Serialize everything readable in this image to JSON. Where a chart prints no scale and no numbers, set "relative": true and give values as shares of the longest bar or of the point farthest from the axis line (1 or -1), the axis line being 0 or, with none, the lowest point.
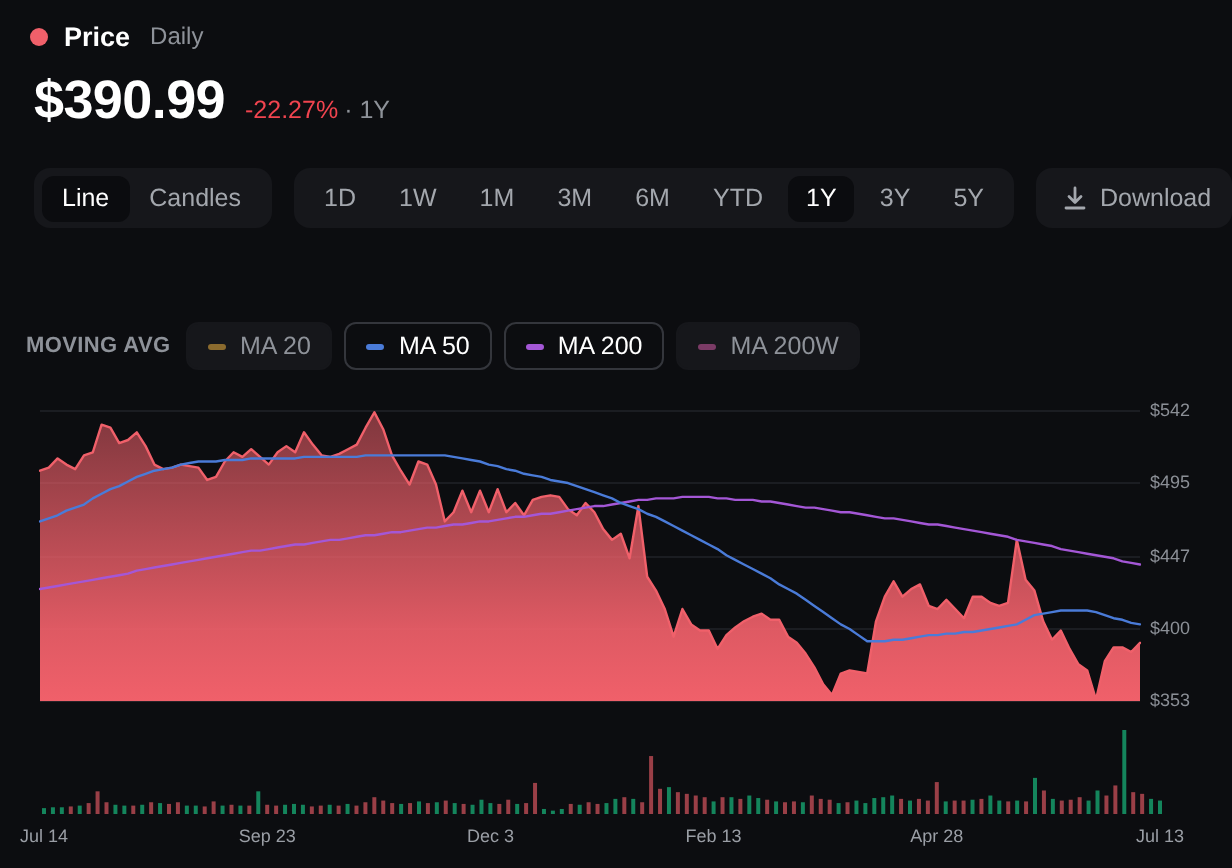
{
  "chart_data": [
    {
      "type": "area",
      "subtitle": "Daily",
      "annotations": [
        "$390.99",
        "-22.27%",
        "· 1Y"
      ],
      "legend": "top left",
      "legend_title": "MOVING AVG",
      "marker": "none",
      "grid": "y",
      "categories": [
        null,
        null,
        null,
        null,
        null,
        null,
        null,
        null,
        null,
        null,
        null,
        null,
        null,
        null,
        null,
        null,
        null,
        null,
        null,
        null,
        null,
        null,
        null,
        null,
        null,
        null,
        null,
        null,
        null,
        null,
        null,
        null,
        null,
        null,
        null,
        null,
        null,
        null,
        null,
        null,
        null,
        null,
        null,
        null,
        null,
        null,
        null,
        null,
        null,
        null,
        null,
        null,
        null,
        null,
        null,
        null,
        null,
        null,
        null,
        null,
        null,
        null,
        null,
        null,
        null,
        null,
        null,
        null,
        null,
        null,
        null,
        null,
        null,
        null,
        null,
        null,
        null,
        null,
        null,
        null,
        null,
        null,
        null,
        null,
        null,
        null,
        null,
        null,
        null,
        null,
        null,
        null,
        null,
        null,
        null,
        null,
        null,
        null,
        null,
        null,
        null,
        null,
        null,
        null,
        null,
        null,
        null,
        null,
        null,
        null,
        null,
        null,
        null,
        null,
        null,
        null,
        null,
        null,
        null,
        null,
        null,
        null,
        null,
        null,
        null,
        null
      ],
      "ylim": [
        353,
        542
      ],
      "yticks": [
        {
          "value": 353,
          "label": "$353"
        },
        {
          "value": 400,
          "label": "$400"
        },
        {
          "value": 447,
          "label": "$447"
        },
        {
          "value": 495,
          "label": "$495"
        },
        {
          "value": 542,
          "label": "$542"
        }
      ],
      "series": [
        {
          "name": "Price",
          "color": "#f0606a",
          "values": [
            503,
            505,
            511,
            507,
            504,
            513,
            515,
            533,
            531,
            521,
            523,
            528,
            519,
            507,
            504,
            505,
            507,
            506,
            505,
            497,
            499,
            509,
            515,
            512,
            517,
            512,
            507,
            515,
            519,
            515,
            528,
            520,
            513,
            512,
            514,
            517,
            520,
            531,
            541,
            530,
            513,
            503,
            494,
            509,
            507,
            494,
            470,
            476,
            490,
            476,
            490,
            476,
            491,
            476,
            482,
            474,
            484,
            486,
            487,
            486,
            478,
            474,
            482,
            476,
            465,
            458,
            462,
            446,
            480,
            434,
            425,
            413,
            395,
            413,
            403,
            399,
            399,
            387,
            396,
            401,
            405,
            408,
            410,
            406,
            406,
            395,
            391,
            384,
            375,
            364,
            357,
            371,
            373,
            372,
            371,
            405,
            421,
            431,
            421,
            426,
            429,
            415,
            413,
            419,
            413,
            407,
            421,
            421,
            417,
            415,
            417,
            458,
            432,
            425,
            405,
            393,
            399,
            387,
            377,
            373,
            354,
            379,
            388,
            388,
            385,
            391
          ]
        },
        {
          "name": "MA 20",
          "type": "line",
          "color": "#8b6b2e",
          "values": [
            null,
            null,
            null,
            null,
            null,
            null,
            null,
            null,
            null,
            null,
            null,
            null,
            null,
            null,
            null,
            null,
            null,
            null,
            null,
            null,
            null,
            null,
            null,
            null,
            null,
            null,
            null,
            null,
            null,
            null,
            null,
            null,
            null,
            null,
            null,
            null,
            null,
            null,
            null,
            null,
            null,
            null,
            null,
            null,
            null,
            null,
            null,
            null,
            null,
            null,
            null,
            null,
            null,
            null,
            null,
            null,
            null,
            null,
            null,
            null,
            null,
            null,
            null,
            null,
            null,
            null,
            null,
            null,
            null,
            null,
            null,
            null,
            null,
            null,
            null,
            null,
            null,
            null,
            null,
            null,
            null,
            null,
            null,
            null,
            null,
            null,
            null,
            null,
            null,
            null,
            null,
            null,
            null,
            null,
            null,
            null,
            null,
            null,
            null,
            null,
            null,
            null,
            null,
            null,
            null,
            null,
            null,
            null,
            null,
            null,
            null,
            null,
            null,
            null,
            null,
            null,
            null,
            null,
            null,
            null,
            null,
            null,
            null,
            null,
            null,
            null
          ]
        },
        {
          "name": "MA 50",
          "type": "line",
          "color": "#4a7bd8",
          "values": [
            470,
            472,
            474,
            477,
            479,
            481,
            485,
            488,
            491,
            493,
            496,
            499,
            501,
            503,
            504,
            505,
            507,
            508,
            509,
            509,
            509,
            510,
            510,
            510,
            511,
            511,
            511,
            511,
            511,
            511,
            512,
            512,
            512,
            512,
            512,
            512,
            512,
            513,
            513,
            513,
            513,
            513,
            513,
            513,
            513,
            513,
            513,
            512,
            511,
            510,
            509,
            507,
            506,
            504,
            503,
            501,
            500,
            499,
            497,
            496,
            495,
            493,
            491,
            489,
            487,
            485,
            482,
            480,
            478,
            475,
            473,
            470,
            467,
            464,
            461,
            458,
            455,
            452,
            448,
            445,
            442,
            439,
            436,
            433,
            429,
            426,
            423,
            419,
            415,
            411,
            407,
            403,
            400,
            396,
            392,
            392,
            392,
            393,
            393,
            394,
            395,
            396,
            396,
            397,
            397,
            398,
            398,
            399,
            400,
            401,
            402,
            403,
            406,
            409,
            410,
            411,
            412,
            412,
            412,
            412,
            411,
            409,
            407,
            406,
            404,
            403
          ]
        },
        {
          "name": "MA 200",
          "type": "line",
          "color": "#a457d6",
          "values": [
            426,
            427,
            428,
            429,
            430,
            431,
            432,
            433,
            434,
            435,
            436,
            438,
            439,
            440,
            441,
            442,
            443,
            444,
            445,
            446,
            447,
            448,
            449,
            450,
            451,
            451,
            452,
            453,
            454,
            455,
            455,
            456,
            457,
            458,
            458,
            459,
            460,
            461,
            461,
            462,
            463,
            463,
            464,
            465,
            466,
            466,
            467,
            468,
            468,
            469,
            470,
            470,
            471,
            472,
            473,
            473,
            474,
            475,
            475,
            476,
            477,
            478,
            479,
            480,
            480,
            481,
            482,
            483,
            484,
            484,
            485,
            485,
            485,
            486,
            486,
            486,
            486,
            485,
            485,
            484,
            484,
            484,
            483,
            483,
            482,
            481,
            480,
            479,
            479,
            478,
            477,
            476,
            476,
            475,
            474,
            473,
            472,
            472,
            471,
            470,
            469,
            468,
            468,
            467,
            466,
            465,
            464,
            463,
            462,
            461,
            460,
            458,
            457,
            456,
            455,
            454,
            452,
            451,
            450,
            449,
            448,
            447,
            446,
            444,
            443,
            442
          ]
        },
        {
          "name": "MA 200W",
          "type": "line",
          "color": "#7b3b66",
          "values": [
            null,
            null,
            null,
            null,
            null,
            null,
            null,
            null,
            null,
            null,
            null,
            null,
            null,
            null,
            null,
            null,
            null,
            null,
            null,
            null,
            null,
            null,
            null,
            null,
            null,
            null,
            null,
            null,
            null,
            null,
            null,
            null,
            null,
            null,
            null,
            null,
            null,
            null,
            null,
            null,
            null,
            null,
            null,
            null,
            null,
            null,
            null,
            null,
            null,
            null,
            null,
            null,
            null,
            null,
            null,
            null,
            null,
            null,
            null,
            null,
            null,
            null,
            null,
            null,
            null,
            null,
            null,
            null,
            null,
            null,
            null,
            null,
            null,
            null,
            null,
            null,
            null,
            null,
            null,
            null,
            null,
            null,
            null,
            null,
            null,
            null,
            null,
            null,
            null,
            null,
            null,
            null,
            null,
            null,
            null,
            null,
            null,
            null,
            null,
            null,
            null,
            null,
            null,
            null,
            null,
            null,
            null,
            null,
            null,
            null,
            null,
            null,
            null,
            null,
            null,
            null,
            null,
            null,
            null,
            null,
            null,
            null,
            null,
            null,
            null,
            null
          ]
        }
      ]
    },
    {
      "type": "other",
      "annotations": [
        "Line",
        "Candles",
        "1D",
        "1W",
        "1M",
        "3M",
        "6M",
        "YTD",
        "1Y",
        "3Y",
        "5Y",
        "Download"
      ]
    },
    {
      "type": "bar",
      "relative": true,
      "categories": [
        "Jul 14",
        null,
        null,
        null,
        null,
        null,
        null,
        null,
        null,
        null,
        null,
        null,
        null,
        null,
        null,
        null,
        null,
        null,
        null,
        null,
        null,
        null,
        null,
        null,
        null,
        "Sep 23",
        null,
        null,
        null,
        null,
        null,
        null,
        null,
        null,
        null,
        null,
        null,
        null,
        null,
        null,
        null,
        null,
        null,
        null,
        null,
        null,
        null,
        null,
        null,
        null,
        "Dec 3",
        null,
        null,
        null,
        null,
        null,
        null,
        null,
        null,
        null,
        null,
        null,
        null,
        null,
        null,
        null,
        null,
        null,
        null,
        null,
        null,
        null,
        null,
        null,
        null,
        "Feb 13",
        null,
        null,
        null,
        null,
        null,
        null,
        null,
        null,
        null,
        null,
        null,
        null,
        null,
        null,
        null,
        null,
        null,
        null,
        null,
        null,
        null,
        null,
        null,
        null,
        "Apr 28",
        null,
        null,
        null,
        null,
        null,
        null,
        null,
        null,
        null,
        null,
        null,
        null,
        null,
        null,
        null,
        null,
        null,
        null,
        null,
        null,
        null,
        null,
        null,
        null,
        "Jul 13"
      ],
      "values": [
        0.07,
        0.08,
        0.08,
        0.09,
        0.1,
        0.13,
        0.27,
        0.14,
        0.11,
        0.1,
        0.1,
        0.11,
        0.14,
        0.13,
        0.12,
        0.14,
        0.1,
        0.1,
        0.09,
        0.15,
        0.1,
        0.11,
        0.1,
        0.1,
        0.27,
        0.11,
        0.1,
        0.11,
        0.12,
        0.11,
        0.09,
        0.1,
        0.11,
        0.1,
        0.12,
        0.1,
        0.14,
        0.2,
        0.16,
        0.13,
        0.12,
        0.13,
        0.15,
        0.13,
        0.14,
        0.16,
        0.13,
        0.12,
        0.11,
        0.17,
        0.13,
        0.12,
        0.17,
        0.12,
        0.13,
        0.37,
        0.06,
        0.04,
        0.06,
        0.12,
        0.11,
        0.14,
        0.12,
        0.13,
        0.18,
        0.2,
        0.18,
        0.14,
        0.69,
        0.3,
        0.32,
        0.26,
        0.24,
        0.22,
        0.2,
        0.15,
        0.2,
        0.2,
        0.18,
        0.22,
        0.19,
        0.17,
        0.15,
        0.14,
        0.15,
        0.14,
        0.22,
        0.18,
        0.17,
        0.13,
        0.14,
        0.16,
        0.13,
        0.19,
        0.2,
        0.22,
        0.18,
        0.16,
        0.18,
        0.16,
        0.38,
        0.15,
        0.16,
        0.16,
        0.17,
        0.18,
        0.22,
        0.16,
        0.15,
        0.16,
        0.15,
        0.43,
        0.28,
        0.18,
        0.16,
        0.17,
        0.2,
        0.16,
        0.28,
        0.22,
        0.34,
        1,
        0.26,
        0.24,
        0.18,
        0.16
      ],
      "colors": [
        "#14855c",
        "#14855c",
        "#14855c",
        "#9a3f47",
        "#14855c",
        "#9a3f47",
        "#9a3f47",
        "#9a3f47",
        "#14855c",
        "#14855c",
        "#9a3f47",
        "#14855c",
        "#9a3f47",
        "#14855c",
        "#9a3f47",
        "#9a3f47",
        "#14855c",
        "#14855c",
        "#9a3f47",
        "#9a3f47",
        "#14855c",
        "#9a3f47",
        "#14855c",
        "#9a3f47",
        "#14855c",
        "#9a3f47",
        "#9a3f47",
        "#14855c",
        "#14855c",
        "#14855c",
        "#9a3f47",
        "#9a3f47",
        "#14855c",
        "#9a3f47",
        "#14855c",
        "#9a3f47",
        "#9a3f47",
        "#9a3f47",
        "#9a3f47",
        "#9a3f47",
        "#14855c",
        "#9a3f47",
        "#14855c",
        "#9a3f47",
        "#14855c",
        "#9a3f47",
        "#14855c",
        "#9a3f47",
        "#14855c",
        "#14855c",
        "#14855c",
        "#9a3f47",
        "#9a3f47",
        "#14855c",
        "#9a3f47",
        "#9a3f47",
        "#14855c",
        "#14855c",
        "#14855c",
        "#9a3f47",
        "#14855c",
        "#9a3f47",
        "#9a3f47",
        "#14855c",
        "#14855c",
        "#9a3f47",
        "#14855c",
        "#9a3f47",
        "#9a3f47",
        "#9a3f47",
        "#14855c",
        "#9a3f47",
        "#9a3f47",
        "#9a3f47",
        "#9a3f47",
        "#14855c",
        "#9a3f47",
        "#14855c",
        "#9a3f47",
        "#14855c",
        "#14855c",
        "#9a3f47",
        "#14855c",
        "#9a3f47",
        "#9a3f47",
        "#14855c",
        "#9a3f47",
        "#9a3f47",
        "#9a3f47",
        "#14855c",
        "#9a3f47",
        "#14855c",
        "#14855c",
        "#14855c",
        "#14855c",
        "#14855c",
        "#9a3f47",
        "#14855c",
        "#9a3f47",
        "#9a3f47",
        "#9a3f47",
        "#14855c",
        "#9a3f47",
        "#9a3f47",
        "#14855c",
        "#9a3f47",
        "#14855c",
        "#14855c",
        "#9a3f47",
        "#14855c",
        "#9a3f47",
        "#14855c",
        "#9a3f47",
        "#14855c",
        "#9a3f47",
        "#9a3f47",
        "#9a3f47",
        "#14855c",
        "#14855c",
        "#9a3f47",
        "#9a3f47",
        "#14855c",
        "#9a3f47",
        "#9a3f47",
        "#14855c",
        "#14855c"
      ]
    }
  ]
}
